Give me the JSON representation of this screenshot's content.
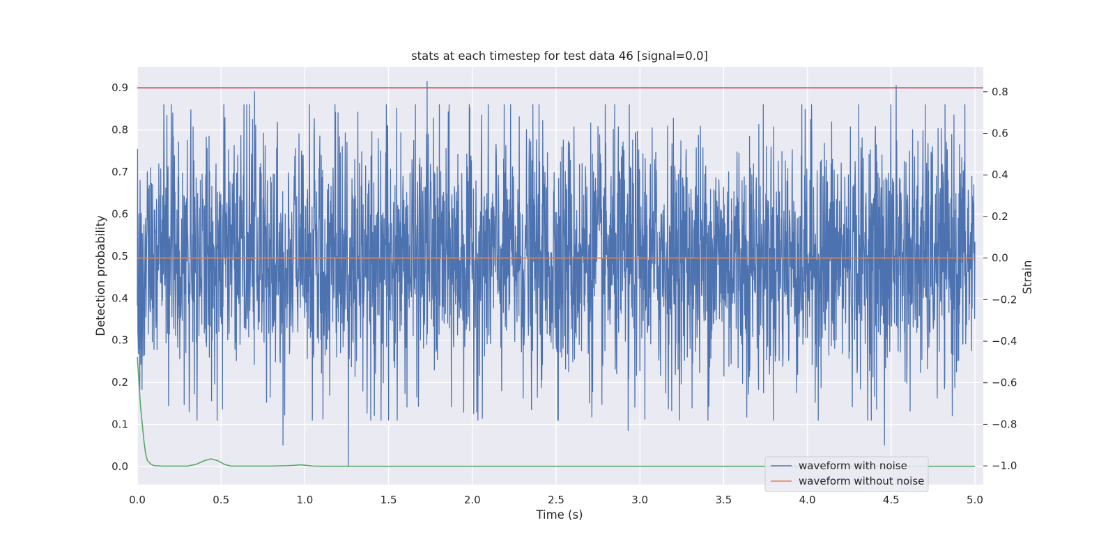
{
  "chart_data": {
    "type": "line",
    "title": "stats at each timestep for test data 46 [signal=0.0]",
    "xlabel": "Time (s)",
    "ylabel_left": "Detection probability",
    "ylabel_right": "Strain",
    "xlim": [
      0.0,
      5.05
    ],
    "ylim_left": [
      -0.043,
      0.95
    ],
    "ylim_right": [
      -1.09,
      0.92
    ],
    "x_ticks": [
      "0.0",
      "0.5",
      "1.0",
      "1.5",
      "2.0",
      "2.5",
      "3.0",
      "3.5",
      "4.0",
      "4.5",
      "5.0"
    ],
    "y_left_ticks": [
      "0.0",
      "0.1",
      "0.2",
      "0.3",
      "0.4",
      "0.5",
      "0.6",
      "0.7",
      "0.8",
      "0.9"
    ],
    "y_right_ticks": [
      "−1.0",
      "−0.8",
      "−0.6",
      "−0.4",
      "−0.2",
      "0.0",
      "0.2",
      "0.4",
      "0.6",
      "0.8"
    ],
    "grid": true,
    "legend_placement": "lower-right",
    "threshold": {
      "axis": "left",
      "value": 0.9,
      "color": "#c44e52"
    },
    "series": [
      {
        "name": "waveform with noise",
        "axis": "right",
        "color": "#4c72b0",
        "style": "dense-noise",
        "x_range": [
          0.0,
          5.0
        ],
        "y_range": [
          -1.0,
          0.9
        ],
        "typical_amplitude": 0.3,
        "notable_peaks": [
          [
            0.7,
            0.8
          ],
          [
            1.73,
            0.85
          ],
          [
            4.53,
            0.83
          ],
          [
            1.26,
            -1.0
          ],
          [
            4.46,
            -0.9
          ],
          [
            0.87,
            -0.9
          ],
          [
            2.93,
            -0.83
          ]
        ]
      },
      {
        "name": "waveform without noise",
        "axis": "right",
        "color": "#dd8452",
        "x": [
          0.0,
          5.0
        ],
        "y": [
          0.0,
          0.0
        ]
      },
      {
        "axis": "left",
        "color": "#55a868",
        "x": [
          0.0,
          0.01,
          0.02,
          0.03,
          0.04,
          0.05,
          0.06,
          0.08,
          0.1,
          0.15,
          0.2,
          0.3,
          0.35,
          0.4,
          0.44,
          0.48,
          0.52,
          0.56,
          0.6,
          0.8,
          0.9,
          0.95,
          0.97,
          1.0,
          1.05,
          1.1,
          1.5,
          2.0,
          3.0,
          4.0,
          5.0
        ],
        "y": [
          0.26,
          0.2,
          0.14,
          0.1,
          0.06,
          0.03,
          0.015,
          0.006,
          0.002,
          0.001,
          0.001,
          0.001,
          0.005,
          0.014,
          0.018,
          0.014,
          0.005,
          0.001,
          0.001,
          0.001,
          0.002,
          0.003,
          0.004,
          0.003,
          0.001,
          0.0005,
          0.0005,
          0.0005,
          0.0005,
          0.0005,
          0.0005
        ]
      }
    ]
  }
}
